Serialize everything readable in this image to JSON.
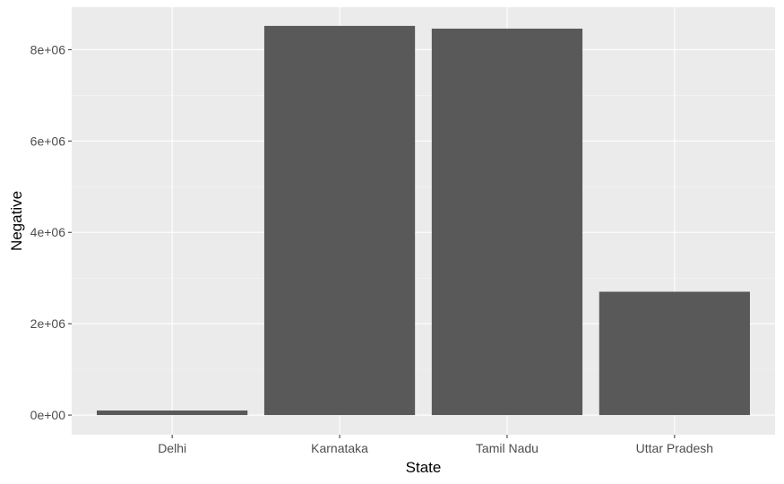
{
  "chart_data": {
    "type": "bar",
    "categories": [
      "Delhi",
      "Karnataka",
      "Tamil Nadu",
      "Uttar Pradesh"
    ],
    "values": [
      100000,
      8520000,
      8460000,
      2700000
    ],
    "xlabel": "State",
    "ylabel": "Negative",
    "ylim": [
      -430000,
      8930000
    ],
    "yticks": [
      0,
      2000000,
      4000000,
      6000000,
      8000000
    ],
    "ytick_labels": [
      "0e+00",
      "2e+06",
      "4e+06",
      "6e+06",
      "8e+06"
    ],
    "grid": true,
    "legend": "none",
    "colors": {
      "bar": "#595959",
      "panel_background": "#ebebeb",
      "grid_major": "#ffffff",
      "grid_minor": "#f5f5f5",
      "tick_label": "#4d4d4d",
      "axis_title": "#000000"
    }
  }
}
